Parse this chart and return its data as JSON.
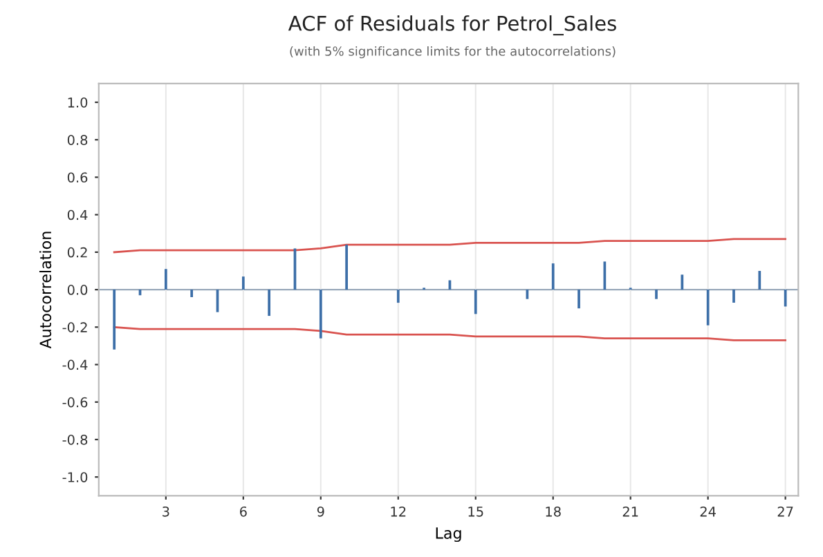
{
  "chart_data": {
    "type": "bar",
    "title": "ACF of Residuals for Petrol_Sales",
    "subtitle": "(with 5% significance limits for the autocorrelations)",
    "xlabel": "Lag",
    "ylabel": "Autocorrelation",
    "x": [
      1,
      2,
      3,
      4,
      5,
      6,
      7,
      8,
      9,
      10,
      11,
      12,
      13,
      14,
      15,
      16,
      17,
      18,
      19,
      20,
      21,
      22,
      23,
      24,
      25,
      26,
      27
    ],
    "series": [
      {
        "color": "#3d6fa8",
        "values": [
          -0.32,
          -0.03,
          0.11,
          -0.04,
          -0.12,
          0.07,
          -0.14,
          0.22,
          -0.26,
          0.24,
          0.0,
          -0.07,
          0.01,
          0.05,
          -0.13,
          0.0,
          -0.05,
          0.14,
          -0.1,
          0.15,
          0.01,
          -0.05,
          0.08,
          -0.19,
          -0.07,
          0.1,
          -0.09
        ]
      },
      {
        "type": "line",
        "color": "#d9534f",
        "values": [
          0.2,
          0.21,
          0.21,
          0.21,
          0.21,
          0.21,
          0.21,
          0.21,
          0.22,
          0.24,
          0.24,
          0.24,
          0.24,
          0.24,
          0.25,
          0.25,
          0.25,
          0.25,
          0.25,
          0.26,
          0.26,
          0.26,
          0.26,
          0.26,
          0.27,
          0.27,
          0.27
        ]
      },
      {
        "type": "line",
        "color": "#d9534f",
        "values": [
          -0.2,
          -0.21,
          -0.21,
          -0.21,
          -0.21,
          -0.21,
          -0.21,
          -0.21,
          -0.22,
          -0.24,
          -0.24,
          -0.24,
          -0.24,
          -0.24,
          -0.25,
          -0.25,
          -0.25,
          -0.25,
          -0.25,
          -0.26,
          -0.26,
          -0.26,
          -0.26,
          -0.26,
          -0.27,
          -0.27,
          -0.27
        ]
      }
    ],
    "xlim": [
      0.4,
      27.5
    ],
    "xticks": [
      3,
      6,
      9,
      12,
      15,
      18,
      21,
      24,
      27
    ],
    "ylim": [
      -1.1,
      1.1
    ],
    "yticks": [
      {
        "value": 1.0,
        "label": "1.0"
      },
      {
        "value": 0.8,
        "label": "0.8"
      },
      {
        "value": 0.6,
        "label": "0.6"
      },
      {
        "value": 0.4,
        "label": "0.4"
      },
      {
        "value": 0.2,
        "label": "0.2"
      },
      {
        "value": 0.0,
        "label": "0.0"
      },
      {
        "value": -0.2,
        "label": "-0.2"
      },
      {
        "value": -0.4,
        "label": "-0.4"
      },
      {
        "value": -0.6,
        "label": "-0.6"
      },
      {
        "value": -0.8,
        "label": "-0.8"
      },
      {
        "value": -1.0,
        "label": "-1.0"
      }
    ],
    "ref_lines": [
      {
        "axis": "y",
        "value": 0,
        "color": "#9aaabb"
      }
    ],
    "grid": "x"
  }
}
